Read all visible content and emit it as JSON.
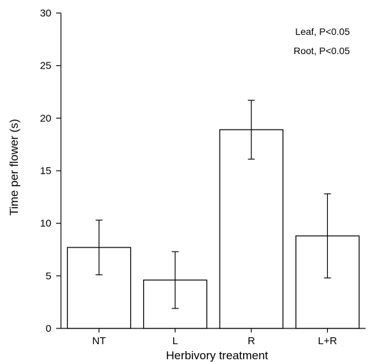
{
  "chart_data": {
    "type": "bar",
    "title": "",
    "xlabel": "Herbivory treatment",
    "ylabel": "Time per flower (s)",
    "categories": [
      "NT",
      "L",
      "R",
      "L+R"
    ],
    "values": [
      7.7,
      4.6,
      18.9,
      8.8
    ],
    "error": [
      {
        "low": 5.1,
        "high": 10.3
      },
      {
        "low": 1.9,
        "high": 7.3
      },
      {
        "low": 16.1,
        "high": 21.7
      },
      {
        "low": 4.8,
        "high": 12.8
      }
    ],
    "ylim": [
      0,
      30
    ],
    "yticks": [
      0,
      5,
      10,
      15,
      20,
      25,
      30
    ],
    "grid": false,
    "annotations": [
      "Leaf, P<0.05",
      "Root, P<0.05"
    ],
    "colors": {
      "bar_fill": "#ffffff",
      "bar_stroke": "#000000",
      "axis": "#000000"
    }
  }
}
